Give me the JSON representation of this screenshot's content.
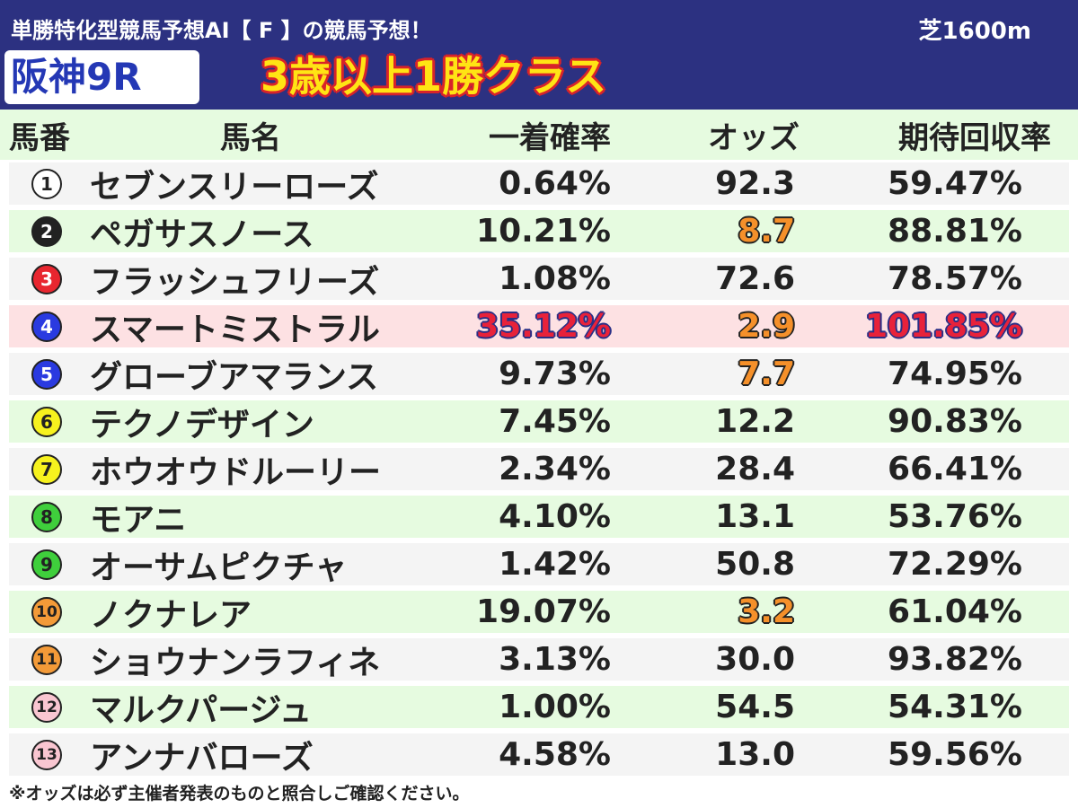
{
  "header": {
    "subtitle": "単勝特化型競馬予想AI【 F 】の競馬予想！",
    "surface": "芝1600m",
    "race_name": "阪神9R",
    "race_class": "3歳以上1勝クラス"
  },
  "table": {
    "columns": {
      "number": "馬番",
      "name": "馬名",
      "win_prob": "一着確率",
      "odds": "オッズ",
      "expected_return": "期待回収率"
    },
    "rows": [
      {
        "num_label": "1",
        "name": "セブンスリーローズ",
        "win_prob": "0.64%",
        "odds": "92.3",
        "expected_return": "59.47%",
        "badge_color": "#ffffff",
        "badge_text_color": "#222222"
      },
      {
        "num_label": "2",
        "name": "ペガサスノース",
        "win_prob": "10.21%",
        "odds": "8.7",
        "expected_return": "88.81%",
        "badge_color": "#222222",
        "badge_text_color": "#ffffff",
        "odds_highlight": true
      },
      {
        "num_label": "3",
        "name": "フラッシュフリーズ",
        "win_prob": "1.08%",
        "odds": "72.6",
        "expected_return": "78.57%",
        "badge_color": "#e8262f",
        "badge_text_color": "#ffffff"
      },
      {
        "num_label": "4",
        "name": "スマートミストラル",
        "win_prob": "35.12%",
        "odds": "2.9",
        "expected_return": "101.85%",
        "badge_color": "#2a3ae0",
        "badge_text_color": "#ffffff",
        "odds_highlight": true,
        "row_highlight": true
      },
      {
        "num_label": "5",
        "name": "グローブアマランス",
        "win_prob": "9.73%",
        "odds": "7.7",
        "expected_return": "74.95%",
        "badge_color": "#2a3ae0",
        "badge_text_color": "#ffffff",
        "odds_highlight": true
      },
      {
        "num_label": "6",
        "name": "テクノデザイン",
        "win_prob": "7.45%",
        "odds": "12.2",
        "expected_return": "90.83%",
        "badge_color": "#f7f21e",
        "badge_text_color": "#222222"
      },
      {
        "num_label": "7",
        "name": "ホウオウドルーリー",
        "win_prob": "2.34%",
        "odds": "28.4",
        "expected_return": "66.41%",
        "badge_color": "#f7f21e",
        "badge_text_color": "#222222"
      },
      {
        "num_label": "8",
        "name": "モアニ",
        "win_prob": "4.10%",
        "odds": "13.1",
        "expected_return": "53.76%",
        "badge_color": "#3fcf3c",
        "badge_text_color": "#222222"
      },
      {
        "num_label": "9",
        "name": "オーサムピクチャ",
        "win_prob": "1.42%",
        "odds": "50.8",
        "expected_return": "72.29%",
        "badge_color": "#3fcf3c",
        "badge_text_color": "#222222"
      },
      {
        "num_label": "10",
        "name": "ノクナレア",
        "win_prob": "19.07%",
        "odds": "3.2",
        "expected_return": "61.04%",
        "badge_color": "#f39a38",
        "badge_text_color": "#222222",
        "odds_highlight": true
      },
      {
        "num_label": "11",
        "name": "ショウナンラフィネ",
        "win_prob": "3.13%",
        "odds": "30.0",
        "expected_return": "93.82%",
        "badge_color": "#f39a38",
        "badge_text_color": "#222222"
      },
      {
        "num_label": "12",
        "name": "マルクパージュ",
        "win_prob": "1.00%",
        "odds": "54.5",
        "expected_return": "54.31%",
        "badge_color": "#f9c6d1",
        "badge_text_color": "#222222"
      },
      {
        "num_label": "13",
        "name": "アンナバローズ",
        "win_prob": "4.58%",
        "odds": "13.0",
        "expected_return": "59.56%",
        "badge_color": "#f9c6d1",
        "badge_text_color": "#222222"
      }
    ]
  },
  "footnote": "※オッズは必ず主催者発表のものと照合しご確認ください。"
}
